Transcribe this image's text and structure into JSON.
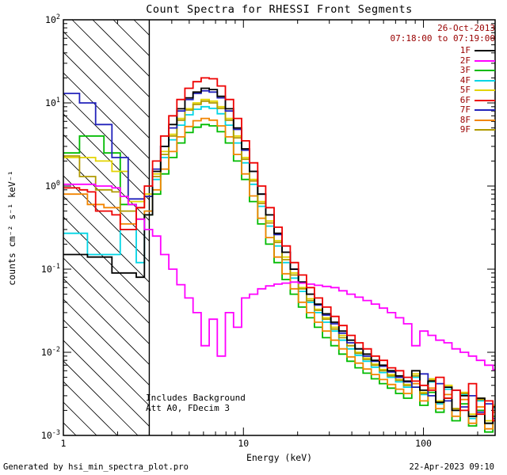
{
  "window": {
    "background": "#ffffff"
  },
  "footer": {
    "left": "Generated by hsi_min_spectra_plot.pro",
    "right": "22-Apr-2023 09:10"
  },
  "chart_data": {
    "type": "line",
    "subtype": "step-histogram",
    "scale": "log-log",
    "title": "Count Spectra for RHESSI Front Segments",
    "xlabel": "Energy (keV)",
    "ylabel": "counts cm⁻² s⁻¹ keV⁻¹",
    "xlim": [
      1,
      250
    ],
    "ylim": [
      0.001,
      100
    ],
    "x_major_ticks": [
      1,
      10,
      100
    ],
    "x_tick_labels": [
      "1",
      "10",
      "100"
    ],
    "y_tick_exponents": [
      2,
      1,
      0,
      -1,
      -2,
      -3
    ],
    "grid": false,
    "frame_color": "#000000",
    "excluded_region": {
      "from_keV": 1,
      "to_keV": 3,
      "style": "diagonal-hatch"
    },
    "legend": {
      "position": "top-right-inside",
      "date": "26-Oct-2013",
      "time_range": "07:18:00 to 07:19:00",
      "text_color": "#990000"
    },
    "annotations": [
      "Includes Background",
      "Att A0, FDecim 3"
    ],
    "draw_order": [
      "3F",
      "4F",
      "5F",
      "8F",
      "9F",
      "7F",
      "1F",
      "2F",
      "6F"
    ],
    "energy_bin_edges_keV": [
      1.0,
      1.11,
      1.23,
      1.36,
      1.51,
      1.68,
      1.86,
      2.07,
      2.29,
      2.54,
      2.82,
      3.13,
      3.47,
      3.85,
      4.27,
      4.73,
      5.25,
      5.82,
      6.46,
      7.16,
      7.94,
      8.81,
      9.77,
      10.8,
      12.0,
      13.3,
      14.8,
      16.4,
      18.2,
      20.2,
      22.4,
      24.8,
      27.5,
      30.6,
      33.9,
      37.6,
      41.7,
      46.2,
      51.3,
      56.9,
      63.1,
      70.0,
      77.6,
      86.1,
      95.5,
      106,
      117,
      130,
      144,
      160,
      178,
      197,
      219,
      243,
      269,
      298
    ],
    "series": [
      {
        "name": "1F",
        "color": "#000000",
        "values": [
          0.15,
          0.15,
          0.15,
          0.14,
          0.14,
          0.14,
          0.09,
          0.09,
          0.09,
          0.08,
          0.45,
          1.5,
          3.0,
          5.5,
          8.5,
          11.5,
          13.5,
          15,
          14.5,
          12,
          8.5,
          5.0,
          2.8,
          1.5,
          0.8,
          0.45,
          0.27,
          0.16,
          0.1,
          0.07,
          0.05,
          0.038,
          0.029,
          0.023,
          0.018,
          0.014,
          0.011,
          0.0095,
          0.008,
          0.007,
          0.006,
          0.0052,
          0.0045,
          0.006,
          0.0035,
          0.0045,
          0.0025,
          0.0038,
          0.002,
          0.003,
          0.0017,
          0.0028,
          0.0014,
          0.0022,
          0.0012,
          0.0018
        ]
      },
      {
        "name": "2F",
        "color": "#ff00ff",
        "values": [
          1.05,
          1.05,
          1.05,
          1.05,
          1.0,
          1.0,
          0.95,
          0.75,
          0.6,
          0.4,
          0.3,
          0.25,
          0.15,
          0.1,
          0.065,
          0.045,
          0.03,
          0.012,
          0.025,
          0.009,
          0.03,
          0.02,
          0.045,
          0.05,
          0.058,
          0.063,
          0.066,
          0.068,
          0.07,
          0.068,
          0.066,
          0.064,
          0.062,
          0.06,
          0.055,
          0.05,
          0.046,
          0.042,
          0.038,
          0.034,
          0.03,
          0.026,
          0.022,
          0.012,
          0.018,
          0.016,
          0.014,
          0.013,
          0.011,
          0.01,
          0.009,
          0.008,
          0.007,
          0.0062,
          0.0055,
          0.0048
        ]
      },
      {
        "name": "3F",
        "color": "#00bb00",
        "values": [
          2.5,
          2.5,
          4.0,
          4.0,
          4.0,
          2.5,
          2.5,
          0.6,
          0.6,
          0.4,
          0.45,
          0.8,
          1.4,
          2.2,
          3.3,
          4.4,
          5.1,
          5.5,
          5.3,
          4.5,
          3.3,
          2.0,
          1.2,
          0.65,
          0.35,
          0.2,
          0.12,
          0.075,
          0.05,
          0.035,
          0.026,
          0.02,
          0.015,
          0.012,
          0.0095,
          0.0078,
          0.0065,
          0.0056,
          0.0048,
          0.0042,
          0.0037,
          0.0032,
          0.0028,
          0.0038,
          0.0023,
          0.0033,
          0.0019,
          0.0028,
          0.0015,
          0.0024,
          0.0013,
          0.002,
          0.0011,
          0.0017,
          0.001,
          0.0015
        ]
      },
      {
        "name": "4F",
        "color": "#00d5e5",
        "values": [
          0.27,
          0.27,
          0.27,
          0.15,
          0.15,
          0.15,
          0.15,
          0.3,
          0.3,
          0.12,
          0.5,
          1.2,
          2.2,
          3.6,
          5.4,
          7.2,
          8.4,
          9.0,
          8.6,
          7.4,
          5.4,
          3.3,
          1.9,
          1.05,
          0.57,
          0.33,
          0.19,
          0.12,
          0.078,
          0.054,
          0.04,
          0.03,
          0.023,
          0.018,
          0.014,
          0.011,
          0.0092,
          0.0078,
          0.0066,
          0.0057,
          0.005,
          0.0044,
          0.0038,
          0.005,
          0.0031,
          0.0044,
          0.0024,
          0.0036,
          0.002,
          0.0031,
          0.0016,
          0.0026,
          0.0014,
          0.0021,
          0.0012,
          0.0017
        ]
      },
      {
        "name": "5F",
        "color": "#e3d400",
        "values": [
          2.2,
          2.2,
          2.2,
          2.2,
          2.0,
          2.0,
          1.5,
          1.5,
          0.65,
          0.65,
          0.8,
          1.4,
          2.6,
          4.2,
          6.5,
          8.5,
          10,
          11,
          10.5,
          9,
          6.5,
          4.0,
          2.2,
          1.2,
          0.65,
          0.38,
          0.22,
          0.14,
          0.09,
          0.06,
          0.044,
          0.033,
          0.026,
          0.02,
          0.016,
          0.012,
          0.01,
          0.0085,
          0.0072,
          0.0062,
          0.0054,
          0.0047,
          0.0041,
          0.0055,
          0.0033,
          0.0048,
          0.0026,
          0.004,
          0.0021,
          0.0033,
          0.0018,
          0.0028,
          0.0015,
          0.0023,
          0.0013,
          0.0019
        ]
      },
      {
        "name": "6F",
        "color": "#ee0000",
        "values": [
          0.95,
          0.95,
          0.9,
          0.85,
          0.5,
          0.5,
          0.45,
          0.3,
          0.3,
          0.55,
          1.0,
          2.0,
          4.0,
          7.0,
          11,
          15,
          18,
          20,
          19.5,
          16,
          11,
          6.5,
          3.5,
          1.9,
          1.0,
          0.55,
          0.32,
          0.19,
          0.12,
          0.085,
          0.06,
          0.045,
          0.035,
          0.027,
          0.021,
          0.016,
          0.013,
          0.011,
          0.009,
          0.008,
          0.0065,
          0.006,
          0.005,
          0.0045,
          0.004,
          0.0035,
          0.005,
          0.0028,
          0.0035,
          0.002,
          0.0042,
          0.0018,
          0.0026,
          0.0015,
          0.0032,
          0.0012
        ]
      },
      {
        "name": "7F",
        "color": "#2222bb",
        "values": [
          13,
          13,
          10,
          10,
          5.5,
          5.5,
          2.2,
          2.2,
          0.7,
          0.7,
          0.75,
          1.6,
          3.0,
          5.0,
          8.0,
          11,
          13,
          14,
          13.5,
          11.5,
          8.0,
          4.8,
          2.7,
          1.5,
          0.8,
          0.45,
          0.26,
          0.16,
          0.1,
          0.07,
          0.05,
          0.037,
          0.028,
          0.022,
          0.017,
          0.013,
          0.011,
          0.009,
          0.0078,
          0.0068,
          0.0058,
          0.005,
          0.0044,
          0.0038,
          0.0055,
          0.003,
          0.0042,
          0.0026,
          0.0035,
          0.0022,
          0.003,
          0.0019,
          0.0024,
          0.0016,
          0.002,
          0.0014
        ]
      },
      {
        "name": "8F",
        "color": "#f28500",
        "values": [
          0.8,
          0.8,
          0.8,
          0.6,
          0.6,
          0.55,
          0.55,
          0.35,
          0.35,
          0.4,
          0.5,
          0.9,
          1.6,
          2.6,
          3.9,
          5.2,
          6.1,
          6.5,
          6.2,
          5.3,
          3.9,
          2.4,
          1.4,
          0.76,
          0.41,
          0.24,
          0.14,
          0.088,
          0.058,
          0.04,
          0.03,
          0.023,
          0.018,
          0.014,
          0.011,
          0.0088,
          0.0074,
          0.0063,
          0.0054,
          0.0047,
          0.0041,
          0.0036,
          0.0032,
          0.0042,
          0.0026,
          0.0037,
          0.0021,
          0.0031,
          0.0017,
          0.0027,
          0.0014,
          0.0022,
          0.0012,
          0.0019,
          0.001,
          0.0016
        ]
      },
      {
        "name": "9F",
        "color": "#b09a00",
        "values": [
          2.3,
          2.3,
          1.3,
          1.3,
          0.9,
          0.9,
          0.85,
          0.5,
          0.5,
          0.55,
          0.75,
          1.3,
          2.4,
          4.0,
          6.2,
          8.2,
          9.6,
          10.5,
          10,
          8.6,
          6.2,
          3.8,
          2.1,
          1.15,
          0.62,
          0.36,
          0.21,
          0.13,
          0.085,
          0.058,
          0.042,
          0.032,
          0.025,
          0.019,
          0.015,
          0.012,
          0.0097,
          0.0082,
          0.007,
          0.006,
          0.0052,
          0.0046,
          0.004,
          0.0052,
          0.0032,
          0.0046,
          0.0025,
          0.0038,
          0.0021,
          0.0032,
          0.0017,
          0.0027,
          0.0014,
          0.0022,
          0.0012,
          0.0018
        ]
      }
    ]
  }
}
